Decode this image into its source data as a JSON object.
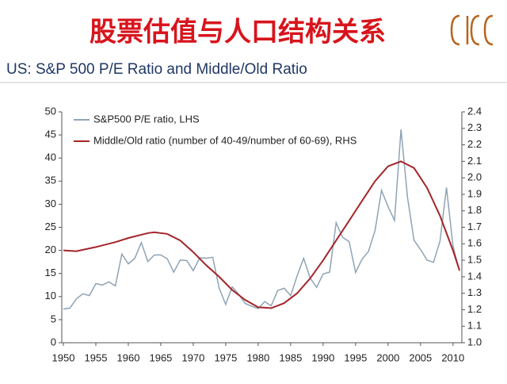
{
  "header": {
    "title": "股票估值与人口结构关系"
  },
  "chart_data": {
    "type": "line",
    "title": "US: S&P 500 P/E Ratio and Middle/Old Ratio",
    "xlim": [
      1950,
      2011
    ],
    "xticks": [
      1950,
      1955,
      1960,
      1965,
      1970,
      1975,
      1980,
      1985,
      1990,
      1995,
      2000,
      2005,
      2010
    ],
    "ylim": [
      0,
      50
    ],
    "yticks": [
      0,
      5,
      10,
      15,
      20,
      25,
      30,
      35,
      40,
      45,
      50
    ],
    "y2lim": [
      1,
      2.4
    ],
    "y2ticks": [
      {
        "value": 1,
        "label": "1.0"
      },
      1.1,
      1.2,
      1.3,
      1.4,
      1.5,
      1.6,
      1.7,
      1.8,
      1.9,
      {
        "value": 2,
        "label": "2.0"
      },
      2.1,
      2.2,
      2.3,
      2.4
    ],
    "series": [
      {
        "name": "S&P500 P/E ratio, LHS",
        "color": "#8fa3b5",
        "x": [
          1950,
          1951,
          1952,
          1953,
          1954,
          1955,
          1956,
          1957,
          1958,
          1959,
          1960,
          1961,
          1962,
          1963,
          1964,
          1965,
          1966,
          1967,
          1968,
          1969,
          1970,
          1971,
          1972,
          1973,
          1974,
          1975,
          1976,
          1977,
          1978,
          1979,
          1980,
          1981,
          1982,
          1983,
          1984,
          1985,
          1986,
          1987,
          1988,
          1989,
          1990,
          1991,
          1992,
          1993,
          1994,
          1995,
          1996,
          1997,
          1998,
          1999,
          2000,
          2001,
          2002,
          2003,
          2004,
          2005,
          2006,
          2007,
          2008,
          2009,
          2010,
          2011
        ],
        "values": [
          7.3,
          7.5,
          9.5,
          10.6,
          10.2,
          12.8,
          12.5,
          13.2,
          12.3,
          19.2,
          17.1,
          18.3,
          21.7,
          17.6,
          19.0,
          19.0,
          18.2,
          15.3,
          17.9,
          17.8,
          15.6,
          18.4,
          18.3,
          18.5,
          11.8,
          8.3,
          12.1,
          10.5,
          8.5,
          7.9,
          7.4,
          8.9,
          8.0,
          11.3,
          11.8,
          10.2,
          14.5,
          18.3,
          14.0,
          12.0,
          14.9,
          15.3,
          26.0,
          22.8,
          21.9,
          15.2,
          18.1,
          19.8,
          24.3,
          33.0,
          29.5,
          26.5,
          46.2,
          31.5,
          22.2,
          20.2,
          17.9,
          17.4,
          22.0,
          33.6,
          21.0,
          15.5
        ]
      },
      {
        "name": "Middle/Old ratio (number of 40-49/number of 60-69), RHS",
        "color": "#a3262a",
        "axis": "y2",
        "x": [
          1950,
          1952,
          1955,
          1958,
          1960,
          1963,
          1964,
          1966,
          1968,
          1970,
          1972,
          1974,
          1976,
          1978,
          1980,
          1982,
          1984,
          1986,
          1988,
          1990,
          1992,
          1994,
          1996,
          1998,
          2000,
          2002,
          2004,
          2006,
          2008,
          2010,
          2011
        ],
        "values": [
          1.56,
          1.555,
          1.58,
          1.61,
          1.635,
          1.665,
          1.67,
          1.66,
          1.62,
          1.55,
          1.47,
          1.4,
          1.32,
          1.26,
          1.215,
          1.21,
          1.24,
          1.3,
          1.39,
          1.5,
          1.62,
          1.74,
          1.86,
          1.98,
          2.07,
          2.1,
          2.06,
          1.94,
          1.77,
          1.56,
          1.44
        ]
      }
    ]
  }
}
